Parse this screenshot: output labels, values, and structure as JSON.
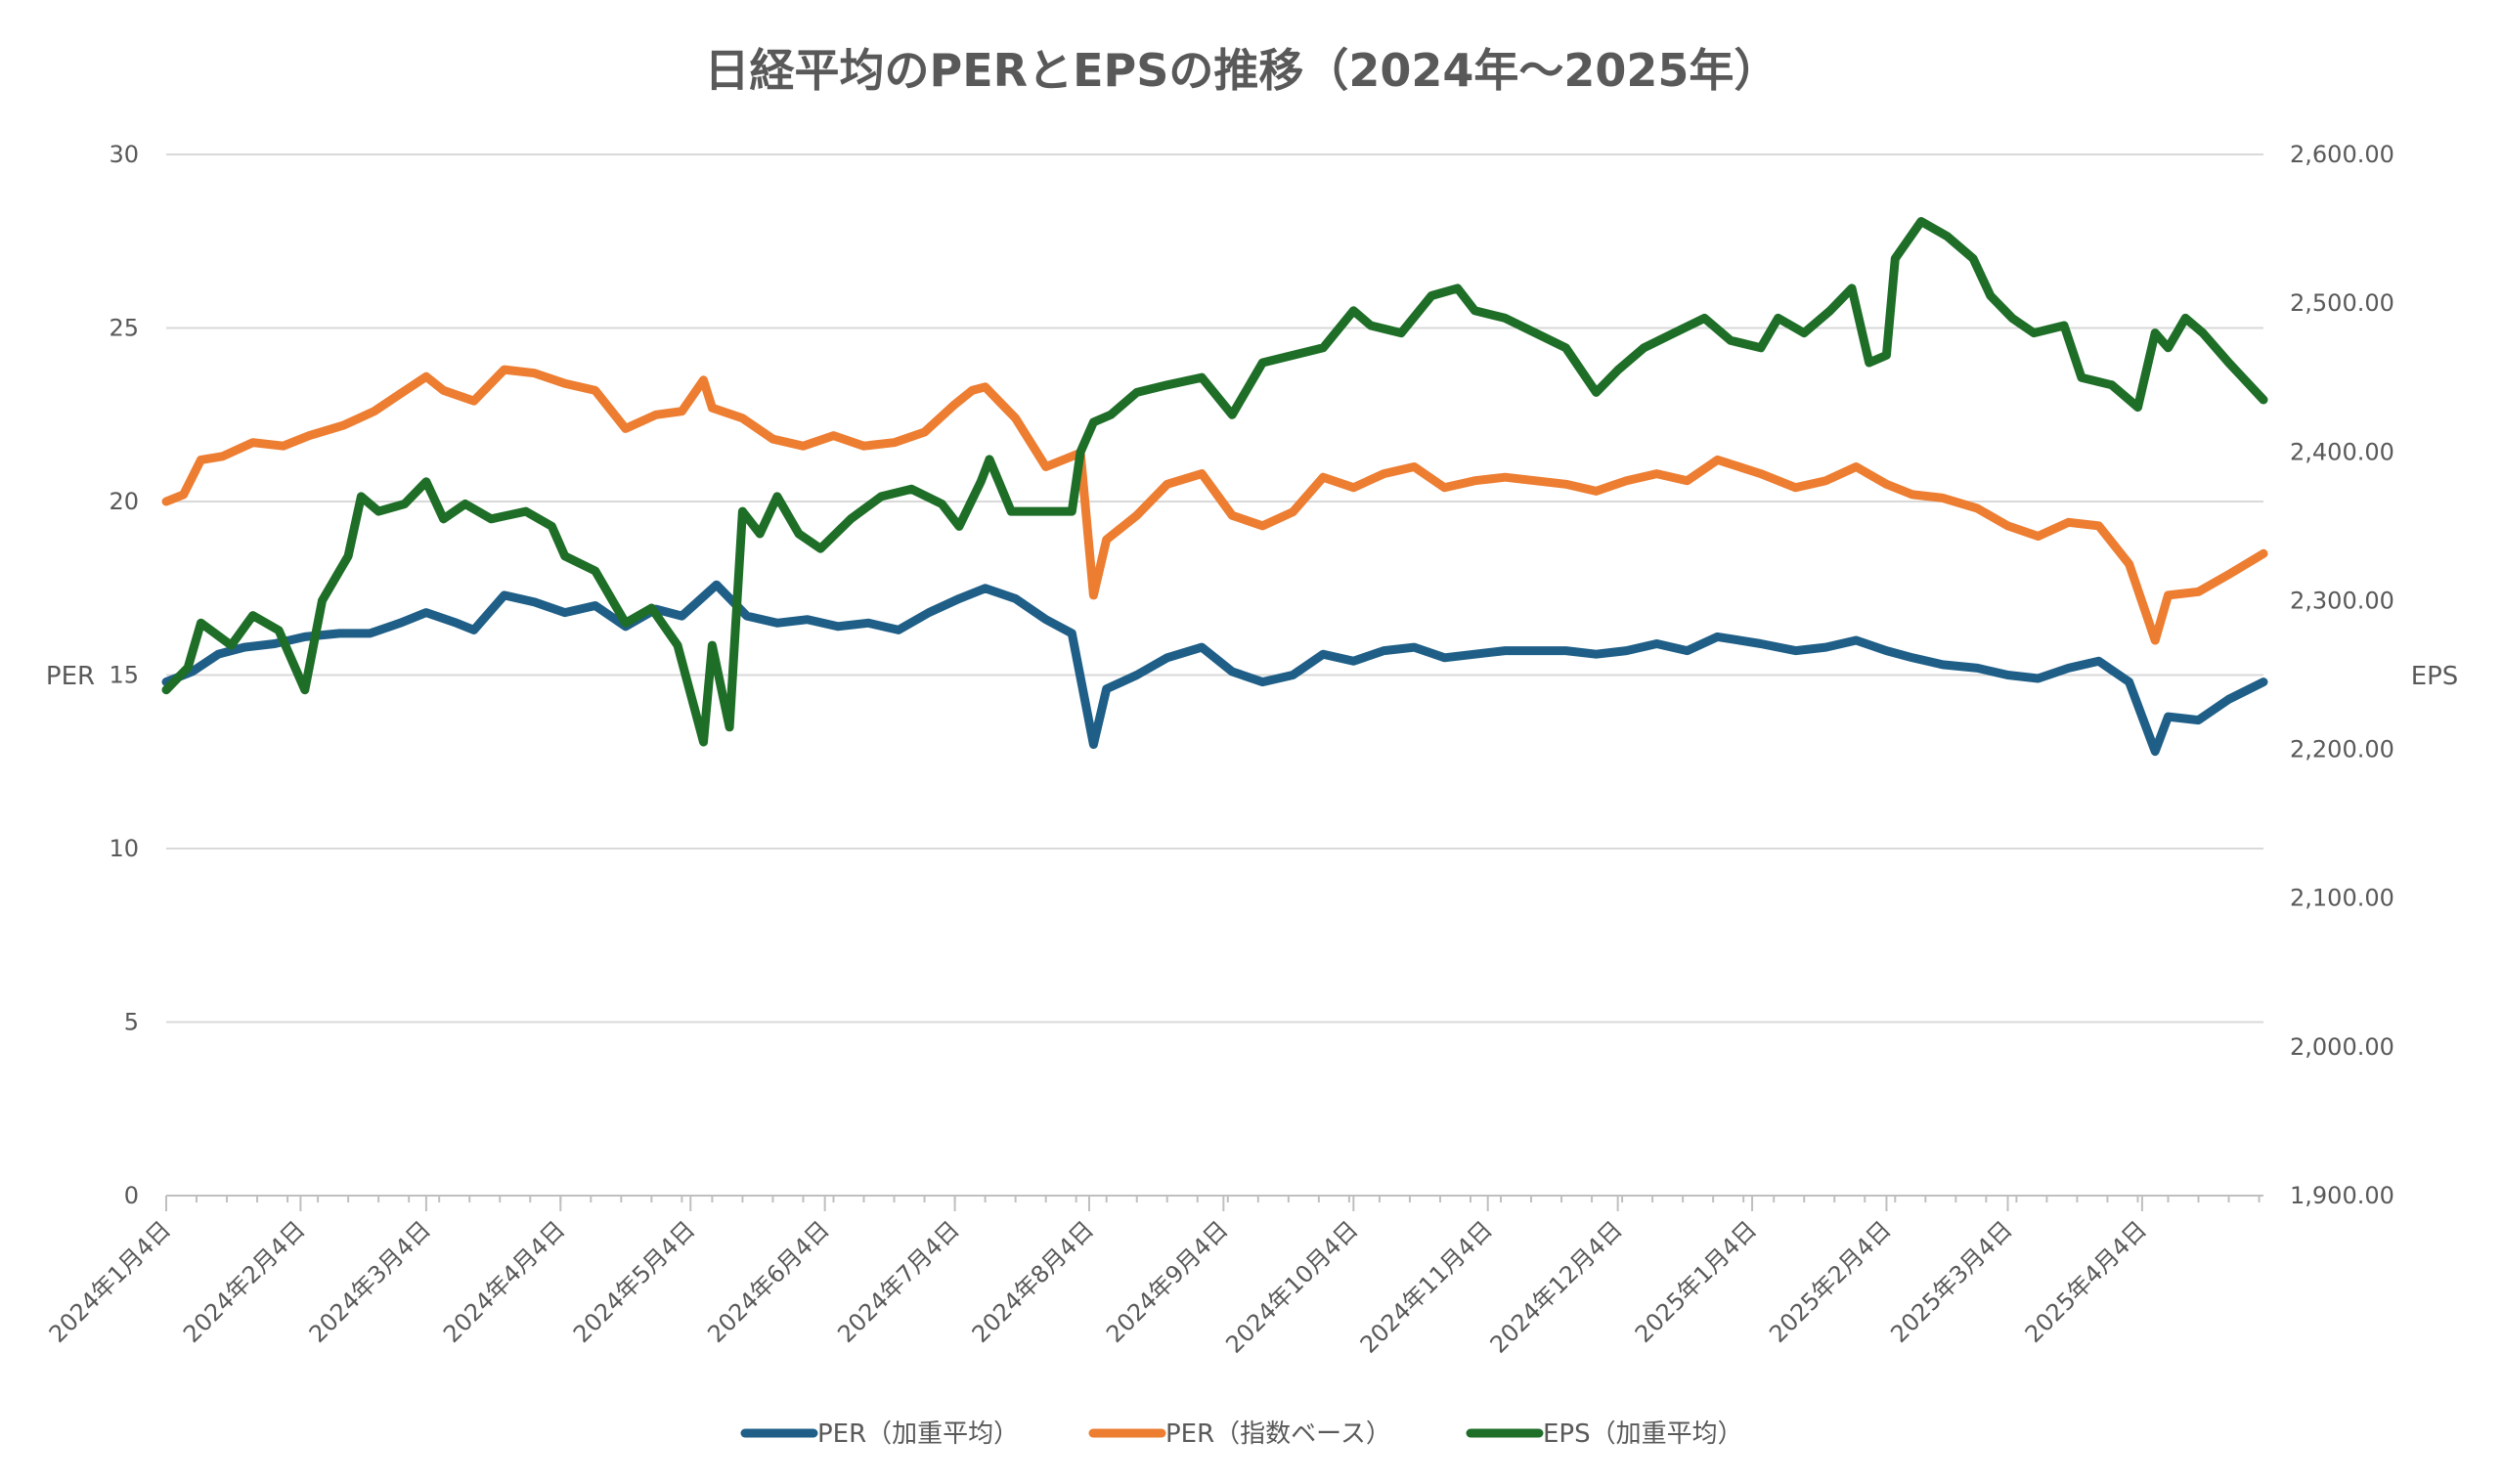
{
  "chart_data": {
    "type": "line",
    "title": "日経平均のPERとEPSの推移（2024年～2025年）",
    "ylabel_left": "PER",
    "ylabel_right": "EPS",
    "ylim_left": [
      0,
      30
    ],
    "ylim_right": [
      1900,
      2600
    ],
    "yticks_left": [
      "0",
      "5",
      "10",
      "15",
      "20",
      "25",
      "30"
    ],
    "yticks_right": [
      "1,900.00",
      "2,000.00",
      "2,100.00",
      "2,200.00",
      "2,300.00",
      "2,400.00",
      "2,500.00",
      "2,600.00"
    ],
    "x_range": [
      "2024-01-04",
      "2025-05-02"
    ],
    "x_ticks": [
      {
        "date": "2024-01-04",
        "label": "2024年1月4日"
      },
      {
        "date": "2024-02-04",
        "label": "2024年2月4日"
      },
      {
        "date": "2024-03-04",
        "label": "2024年3月4日"
      },
      {
        "date": "2024-04-04",
        "label": "2024年4月4日"
      },
      {
        "date": "2024-05-04",
        "label": "2024年5月4日"
      },
      {
        "date": "2024-06-04",
        "label": "2024年6月4日"
      },
      {
        "date": "2024-07-04",
        "label": "2024年7月4日"
      },
      {
        "date": "2024-08-04",
        "label": "2024年8月4日"
      },
      {
        "date": "2024-09-04",
        "label": "2024年9月4日"
      },
      {
        "date": "2024-10-04",
        "label": "2024年10月4日"
      },
      {
        "date": "2024-11-04",
        "label": "2024年11月4日"
      },
      {
        "date": "2024-12-04",
        "label": "2024年12月4日"
      },
      {
        "date": "2025-01-04",
        "label": "2025年1月4日"
      },
      {
        "date": "2025-02-04",
        "label": "2025年2月4日"
      },
      {
        "date": "2025-03-04",
        "label": "2025年3月4日"
      },
      {
        "date": "2025-04-04",
        "label": "2025年4月4日"
      }
    ],
    "grid": true,
    "legend_position": "bottom",
    "series": [
      {
        "name": "PER（加重平均）",
        "axis": "left",
        "color": "#1f5f87",
        "points": [
          [
            "2024-01-04",
            14.8
          ],
          [
            "2024-01-10",
            15.1
          ],
          [
            "2024-01-16",
            15.6
          ],
          [
            "2024-01-22",
            15.8
          ],
          [
            "2024-01-29",
            15.9
          ],
          [
            "2024-02-05",
            16.1
          ],
          [
            "2024-02-13",
            16.2
          ],
          [
            "2024-02-20",
            16.2
          ],
          [
            "2024-02-27",
            16.5
          ],
          [
            "2024-03-04",
            16.8
          ],
          [
            "2024-03-11",
            16.5
          ],
          [
            "2024-03-15",
            16.3
          ],
          [
            "2024-03-22",
            17.3
          ],
          [
            "2024-03-29",
            17.1
          ],
          [
            "2024-04-05",
            16.8
          ],
          [
            "2024-04-12",
            17.0
          ],
          [
            "2024-04-19",
            16.4
          ],
          [
            "2024-04-26",
            16.9
          ],
          [
            "2024-05-02",
            16.7
          ],
          [
            "2024-05-10",
            17.6
          ],
          [
            "2024-05-17",
            16.7
          ],
          [
            "2024-05-24",
            16.5
          ],
          [
            "2024-05-31",
            16.6
          ],
          [
            "2024-06-07",
            16.4
          ],
          [
            "2024-06-14",
            16.5
          ],
          [
            "2024-06-21",
            16.3
          ],
          [
            "2024-06-28",
            16.8
          ],
          [
            "2024-07-05",
            17.2
          ],
          [
            "2024-07-11",
            17.5
          ],
          [
            "2024-07-18",
            17.2
          ],
          [
            "2024-07-25",
            16.6
          ],
          [
            "2024-07-31",
            16.2
          ],
          [
            "2024-08-05",
            13.0
          ],
          [
            "2024-08-08",
            14.6
          ],
          [
            "2024-08-15",
            15.0
          ],
          [
            "2024-08-22",
            15.5
          ],
          [
            "2024-08-30",
            15.8
          ],
          [
            "2024-09-06",
            15.1
          ],
          [
            "2024-09-13",
            14.8
          ],
          [
            "2024-09-20",
            15.0
          ],
          [
            "2024-09-27",
            15.6
          ],
          [
            "2024-10-04",
            15.4
          ],
          [
            "2024-10-11",
            15.7
          ],
          [
            "2024-10-18",
            15.8
          ],
          [
            "2024-10-25",
            15.5
          ],
          [
            "2024-11-01",
            15.6
          ],
          [
            "2024-11-08",
            15.7
          ],
          [
            "2024-11-22",
            15.7
          ],
          [
            "2024-11-29",
            15.6
          ],
          [
            "2024-12-06",
            15.7
          ],
          [
            "2024-12-13",
            15.9
          ],
          [
            "2024-12-20",
            15.7
          ],
          [
            "2024-12-27",
            16.1
          ],
          [
            "2025-01-06",
            15.9
          ],
          [
            "2025-01-14",
            15.7
          ],
          [
            "2025-01-21",
            15.8
          ],
          [
            "2025-01-28",
            16.0
          ],
          [
            "2025-02-04",
            15.7
          ],
          [
            "2025-02-10",
            15.5
          ],
          [
            "2025-02-17",
            15.3
          ],
          [
            "2025-02-25",
            15.2
          ],
          [
            "2025-03-04",
            15.0
          ],
          [
            "2025-03-11",
            14.9
          ],
          [
            "2025-03-18",
            15.2
          ],
          [
            "2025-03-25",
            15.4
          ],
          [
            "2025-04-01",
            14.8
          ],
          [
            "2025-04-07",
            12.8
          ],
          [
            "2025-04-10",
            13.8
          ],
          [
            "2025-04-17",
            13.7
          ],
          [
            "2025-04-24",
            14.3
          ],
          [
            "2025-05-02",
            14.8
          ]
        ]
      },
      {
        "name": "PER（指数ベース）",
        "axis": "left",
        "color": "#ed7d31",
        "points": [
          [
            "2024-01-04",
            20.0
          ],
          [
            "2024-01-08",
            20.2
          ],
          [
            "2024-01-12",
            21.2
          ],
          [
            "2024-01-17",
            21.3
          ],
          [
            "2024-01-24",
            21.7
          ],
          [
            "2024-01-31",
            21.6
          ],
          [
            "2024-02-06",
            21.9
          ],
          [
            "2024-02-14",
            22.2
          ],
          [
            "2024-02-21",
            22.6
          ],
          [
            "2024-02-27",
            23.1
          ],
          [
            "2024-03-04",
            23.6
          ],
          [
            "2024-03-08",
            23.2
          ],
          [
            "2024-03-15",
            22.9
          ],
          [
            "2024-03-22",
            23.8
          ],
          [
            "2024-03-29",
            23.7
          ],
          [
            "2024-04-05",
            23.4
          ],
          [
            "2024-04-12",
            23.2
          ],
          [
            "2024-04-19",
            22.1
          ],
          [
            "2024-04-26",
            22.5
          ],
          [
            "2024-05-02",
            22.6
          ],
          [
            "2024-05-07",
            23.5
          ],
          [
            "2024-05-09",
            22.7
          ],
          [
            "2024-05-16",
            22.4
          ],
          [
            "2024-05-23",
            21.8
          ],
          [
            "2024-05-30",
            21.6
          ],
          [
            "2024-06-06",
            21.9
          ],
          [
            "2024-06-13",
            21.6
          ],
          [
            "2024-06-20",
            21.7
          ],
          [
            "2024-06-27",
            22.0
          ],
          [
            "2024-07-04",
            22.8
          ],
          [
            "2024-07-08",
            23.2
          ],
          [
            "2024-07-11",
            23.3
          ],
          [
            "2024-07-18",
            22.4
          ],
          [
            "2024-07-25",
            21.0
          ],
          [
            "2024-08-02",
            21.4
          ],
          [
            "2024-08-05",
            17.3
          ],
          [
            "2024-08-08",
            18.9
          ],
          [
            "2024-08-15",
            19.6
          ],
          [
            "2024-08-22",
            20.5
          ],
          [
            "2024-08-30",
            20.8
          ],
          [
            "2024-09-06",
            19.6
          ],
          [
            "2024-09-13",
            19.3
          ],
          [
            "2024-09-20",
            19.7
          ],
          [
            "2024-09-27",
            20.7
          ],
          [
            "2024-10-04",
            20.4
          ],
          [
            "2024-10-11",
            20.8
          ],
          [
            "2024-10-18",
            21.0
          ],
          [
            "2024-10-25",
            20.4
          ],
          [
            "2024-11-01",
            20.6
          ],
          [
            "2024-11-08",
            20.7
          ],
          [
            "2024-11-22",
            20.5
          ],
          [
            "2024-11-29",
            20.3
          ],
          [
            "2024-12-06",
            20.6
          ],
          [
            "2024-12-13",
            20.8
          ],
          [
            "2024-12-20",
            20.6
          ],
          [
            "2024-12-27",
            21.2
          ],
          [
            "2025-01-06",
            20.8
          ],
          [
            "2025-01-14",
            20.4
          ],
          [
            "2025-01-21",
            20.6
          ],
          [
            "2025-01-28",
            21.0
          ],
          [
            "2025-02-04",
            20.5
          ],
          [
            "2025-02-10",
            20.2
          ],
          [
            "2025-02-17",
            20.1
          ],
          [
            "2025-02-25",
            19.8
          ],
          [
            "2025-03-04",
            19.3
          ],
          [
            "2025-03-11",
            19.0
          ],
          [
            "2025-03-18",
            19.4
          ],
          [
            "2025-03-25",
            19.3
          ],
          [
            "2025-04-01",
            18.2
          ],
          [
            "2025-04-07",
            16.0
          ],
          [
            "2025-04-10",
            17.3
          ],
          [
            "2025-04-17",
            17.4
          ],
          [
            "2025-04-24",
            17.9
          ],
          [
            "2025-05-02",
            18.5
          ]
        ]
      },
      {
        "name": "EPS（加重平均）",
        "axis": "right",
        "color": "#1e6e28",
        "points": [
          [
            "2024-01-04",
            2240
          ],
          [
            "2024-01-09",
            2255
          ],
          [
            "2024-01-12",
            2285
          ],
          [
            "2024-01-19",
            2270
          ],
          [
            "2024-01-24",
            2290
          ],
          [
            "2024-01-30",
            2280
          ],
          [
            "2024-02-05",
            2240
          ],
          [
            "2024-02-09",
            2300
          ],
          [
            "2024-02-15",
            2330
          ],
          [
            "2024-02-18",
            2370
          ],
          [
            "2024-02-22",
            2360
          ],
          [
            "2024-02-28",
            2365
          ],
          [
            "2024-03-04",
            2380
          ],
          [
            "2024-03-08",
            2355
          ],
          [
            "2024-03-13",
            2365
          ],
          [
            "2024-03-19",
            2355
          ],
          [
            "2024-03-27",
            2360
          ],
          [
            "2024-04-02",
            2350
          ],
          [
            "2024-04-05",
            2330
          ],
          [
            "2024-04-12",
            2320
          ],
          [
            "2024-04-19",
            2285
          ],
          [
            "2024-04-25",
            2295
          ],
          [
            "2024-05-01",
            2270
          ],
          [
            "2024-05-07",
            2205
          ],
          [
            "2024-05-09",
            2270
          ],
          [
            "2024-05-13",
            2215
          ],
          [
            "2024-05-16",
            2360
          ],
          [
            "2024-05-20",
            2345
          ],
          [
            "2024-05-24",
            2370
          ],
          [
            "2024-05-29",
            2345
          ],
          [
            "2024-06-03",
            2335
          ],
          [
            "2024-06-10",
            2355
          ],
          [
            "2024-06-17",
            2370
          ],
          [
            "2024-06-24",
            2375
          ],
          [
            "2024-07-01",
            2365
          ],
          [
            "2024-07-05",
            2350
          ],
          [
            "2024-07-10",
            2380
          ],
          [
            "2024-07-12",
            2395
          ],
          [
            "2024-07-17",
            2360
          ],
          [
            "2024-07-24",
            2360
          ],
          [
            "2024-07-31",
            2360
          ],
          [
            "2024-08-02",
            2400
          ],
          [
            "2024-08-05",
            2420
          ],
          [
            "2024-08-09",
            2425
          ],
          [
            "2024-08-15",
            2440
          ],
          [
            "2024-08-22",
            2445
          ],
          [
            "2024-08-30",
            2450
          ],
          [
            "2024-09-06",
            2425
          ],
          [
            "2024-09-13",
            2460
          ],
          [
            "2024-09-20",
            2465
          ],
          [
            "2024-09-27",
            2470
          ],
          [
            "2024-10-04",
            2495
          ],
          [
            "2024-10-08",
            2485
          ],
          [
            "2024-10-15",
            2480
          ],
          [
            "2024-10-22",
            2505
          ],
          [
            "2024-10-28",
            2510
          ],
          [
            "2024-11-01",
            2495
          ],
          [
            "2024-11-08",
            2490
          ],
          [
            "2024-11-22",
            2470
          ],
          [
            "2024-11-29",
            2440
          ],
          [
            "2024-12-04",
            2455
          ],
          [
            "2024-12-10",
            2470
          ],
          [
            "2024-12-17",
            2480
          ],
          [
            "2024-12-24",
            2490
          ],
          [
            "2024-12-30",
            2475
          ],
          [
            "2025-01-06",
            2470
          ],
          [
            "2025-01-10",
            2490
          ],
          [
            "2025-01-16",
            2480
          ],
          [
            "2025-01-22",
            2495
          ],
          [
            "2025-01-27",
            2510
          ],
          [
            "2025-01-31",
            2460
          ],
          [
            "2025-02-04",
            2465
          ],
          [
            "2025-02-06",
            2530
          ],
          [
            "2025-02-12",
            2555
          ],
          [
            "2025-02-18",
            2545
          ],
          [
            "2025-02-24",
            2530
          ],
          [
            "2025-02-28",
            2505
          ],
          [
            "2025-03-05",
            2490
          ],
          [
            "2025-03-10",
            2480
          ],
          [
            "2025-03-17",
            2485
          ],
          [
            "2025-03-21",
            2450
          ],
          [
            "2025-03-28",
            2445
          ],
          [
            "2025-04-03",
            2430
          ],
          [
            "2025-04-07",
            2480
          ],
          [
            "2025-04-10",
            2470
          ],
          [
            "2025-04-14",
            2490
          ],
          [
            "2025-04-18",
            2480
          ],
          [
            "2025-04-24",
            2460
          ],
          [
            "2025-05-02",
            2435
          ]
        ]
      }
    ]
  }
}
